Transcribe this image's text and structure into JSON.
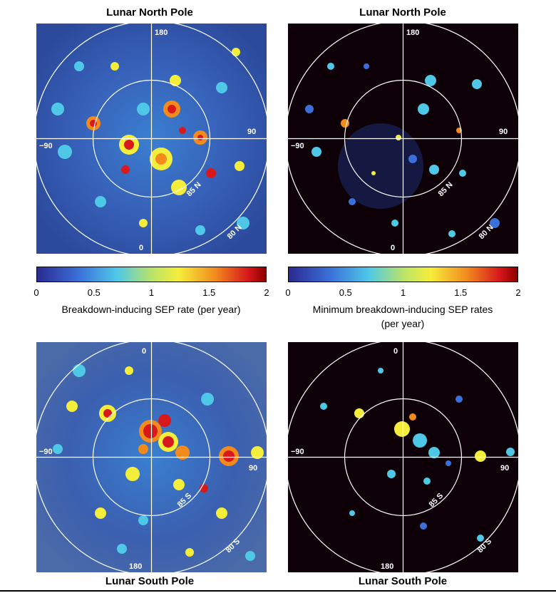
{
  "panels": {
    "top_left": {
      "title": "Lunar North Pole",
      "labels": {
        "top": "180",
        "left": "−90",
        "right": "90",
        "bottom": "0",
        "inner_ring": "85 N",
        "outer_ring": "80 N"
      }
    },
    "top_right": {
      "title": "Lunar North Pole",
      "labels": {
        "top": "180",
        "left": "−90",
        "right": "90",
        "bottom": "0",
        "inner_ring": "85 N",
        "outer_ring": "80 N"
      }
    },
    "bottom_left": {
      "title": "Lunar South Pole",
      "labels": {
        "top": "0",
        "left": "−90",
        "right": "90",
        "bottom": "180",
        "inner_ring": "85 S",
        "outer_ring": "80 S"
      }
    },
    "bottom_right": {
      "title": "Lunar South Pole",
      "labels": {
        "top": "0",
        "left": "−90",
        "right": "90",
        "bottom": "180",
        "inner_ring": "85 S",
        "outer_ring": "80 S"
      }
    }
  },
  "colorbars": {
    "left": {
      "ticks": [
        "0",
        "0.5",
        "1",
        "1.5",
        "2"
      ],
      "label_line1": "Breakdown-inducing SEP rate (per year)",
      "label_line2": ""
    },
    "right": {
      "ticks": [
        "0",
        "0.5",
        "1",
        "1.5",
        "2"
      ],
      "label_line1": "Minimum breakdown-inducing SEP rates",
      "label_line2": "(per year)"
    }
  },
  "colors": {
    "scale": [
      "#2a2a8f",
      "#3b6fd9",
      "#4fc8e8",
      "#f4ee3a",
      "#f28a1e",
      "#d7191c",
      "#8b0000"
    ],
    "map_bg_full": "#2f4fa8",
    "map_bg_min": "#0d0000",
    "grid_lines": "#ffffff"
  }
}
